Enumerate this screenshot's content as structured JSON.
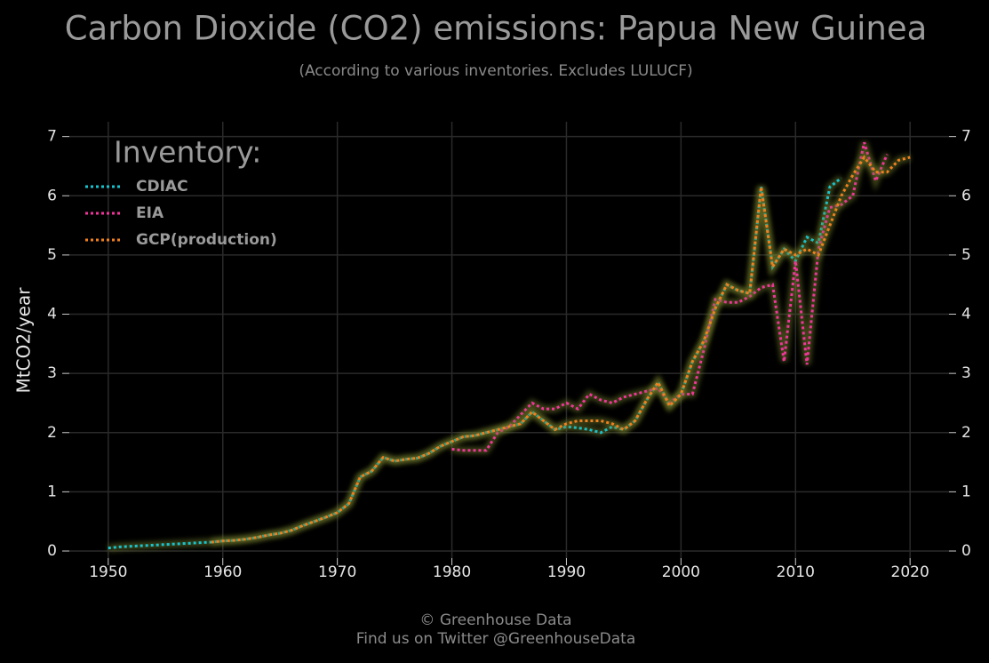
{
  "chart_data": {
    "type": "line",
    "title": "Carbon Dioxide (CO2) emissions: Papua New Guinea",
    "subtitle": "(According to various inventories. Excludes LULUCF)",
    "y_label": "MtCO2/year",
    "legend_title": "Inventory:",
    "footer": [
      "© Greenhouse Data",
      "Find us on Twitter @GreenhouseData"
    ],
    "x": [
      1950,
      1951,
      1952,
      1953,
      1954,
      1955,
      1956,
      1957,
      1958,
      1959,
      1960,
      1961,
      1962,
      1963,
      1964,
      1965,
      1966,
      1967,
      1968,
      1969,
      1970,
      1971,
      1972,
      1973,
      1974,
      1975,
      1976,
      1977,
      1978,
      1979,
      1980,
      1981,
      1982,
      1983,
      1984,
      1985,
      1986,
      1987,
      1988,
      1989,
      1990,
      1991,
      1992,
      1993,
      1994,
      1995,
      1996,
      1997,
      1998,
      1999,
      2000,
      2001,
      2002,
      2003,
      2004,
      2005,
      2006,
      2007,
      2008,
      2009,
      2010,
      2011,
      2012,
      2013,
      2014,
      2015,
      2016,
      2017,
      2018,
      2019,
      2020
    ],
    "series": [
      {
        "name": "CDIAC",
        "color": "#17c3cf",
        "values": [
          0.05,
          0.07,
          0.08,
          0.09,
          0.1,
          0.11,
          0.12,
          0.13,
          0.14,
          0.15,
          0.17,
          0.18,
          0.2,
          0.23,
          0.27,
          0.3,
          0.35,
          0.43,
          0.5,
          0.57,
          0.65,
          0.8,
          1.25,
          1.35,
          1.58,
          1.52,
          1.55,
          1.57,
          1.65,
          1.77,
          1.85,
          1.93,
          1.95,
          2.0,
          2.05,
          2.1,
          2.15,
          2.35,
          2.2,
          2.05,
          2.1,
          2.08,
          2.05,
          2.0,
          2.1,
          2.05,
          2.2,
          2.55,
          2.85,
          2.45,
          2.65,
          3.2,
          3.55,
          4.1,
          4.5,
          4.4,
          4.35,
          6.15,
          4.8,
          5.1,
          4.9,
          5.3,
          5.2,
          6.15,
          6.3,
          null,
          null,
          null,
          null,
          null,
          null
        ]
      },
      {
        "name": "EIA",
        "color": "#f0359a",
        "values": [
          null,
          null,
          null,
          null,
          null,
          null,
          null,
          null,
          null,
          null,
          null,
          null,
          null,
          null,
          null,
          null,
          null,
          null,
          null,
          null,
          null,
          null,
          null,
          null,
          null,
          null,
          null,
          null,
          null,
          null,
          1.72,
          1.7,
          1.7,
          1.7,
          2.0,
          2.1,
          2.3,
          2.5,
          2.4,
          2.4,
          2.5,
          2.4,
          2.65,
          2.55,
          2.5,
          2.6,
          2.65,
          2.7,
          2.75,
          2.5,
          2.65,
          2.65,
          3.4,
          4.25,
          4.2,
          4.2,
          4.3,
          4.45,
          4.5,
          3.2,
          4.9,
          3.15,
          5.1,
          5.8,
          5.85,
          6.0,
          6.9,
          6.25,
          6.7,
          null,
          null
        ]
      },
      {
        "name": "GCP(production)",
        "color": "#f07f1e",
        "values": [
          null,
          null,
          null,
          null,
          null,
          null,
          null,
          null,
          null,
          0.15,
          0.17,
          0.18,
          0.2,
          0.23,
          0.27,
          0.3,
          0.35,
          0.43,
          0.5,
          0.57,
          0.65,
          0.8,
          1.25,
          1.35,
          1.58,
          1.52,
          1.55,
          1.57,
          1.65,
          1.77,
          1.85,
          1.93,
          1.95,
          2.0,
          2.05,
          2.1,
          2.15,
          2.35,
          2.2,
          2.05,
          2.15,
          2.2,
          2.2,
          2.2,
          2.15,
          2.05,
          2.2,
          2.55,
          2.85,
          2.45,
          2.65,
          3.2,
          3.55,
          4.1,
          4.5,
          4.4,
          4.35,
          6.15,
          4.8,
          5.1,
          5.0,
          5.1,
          5.0,
          5.5,
          6.0,
          6.35,
          6.65,
          6.4,
          6.4,
          6.6,
          6.65
        ]
      }
    ],
    "xlim": [
      1946.6,
      2023.4
    ],
    "ylim": [
      -0.12,
      7.25
    ],
    "xticks": [
      1950,
      1960,
      1970,
      1980,
      1990,
      2000,
      2010,
      2020
    ],
    "yticks": [
      0,
      1,
      2,
      3,
      4,
      5,
      6,
      7
    ],
    "grid": true,
    "legend": "upper left"
  }
}
